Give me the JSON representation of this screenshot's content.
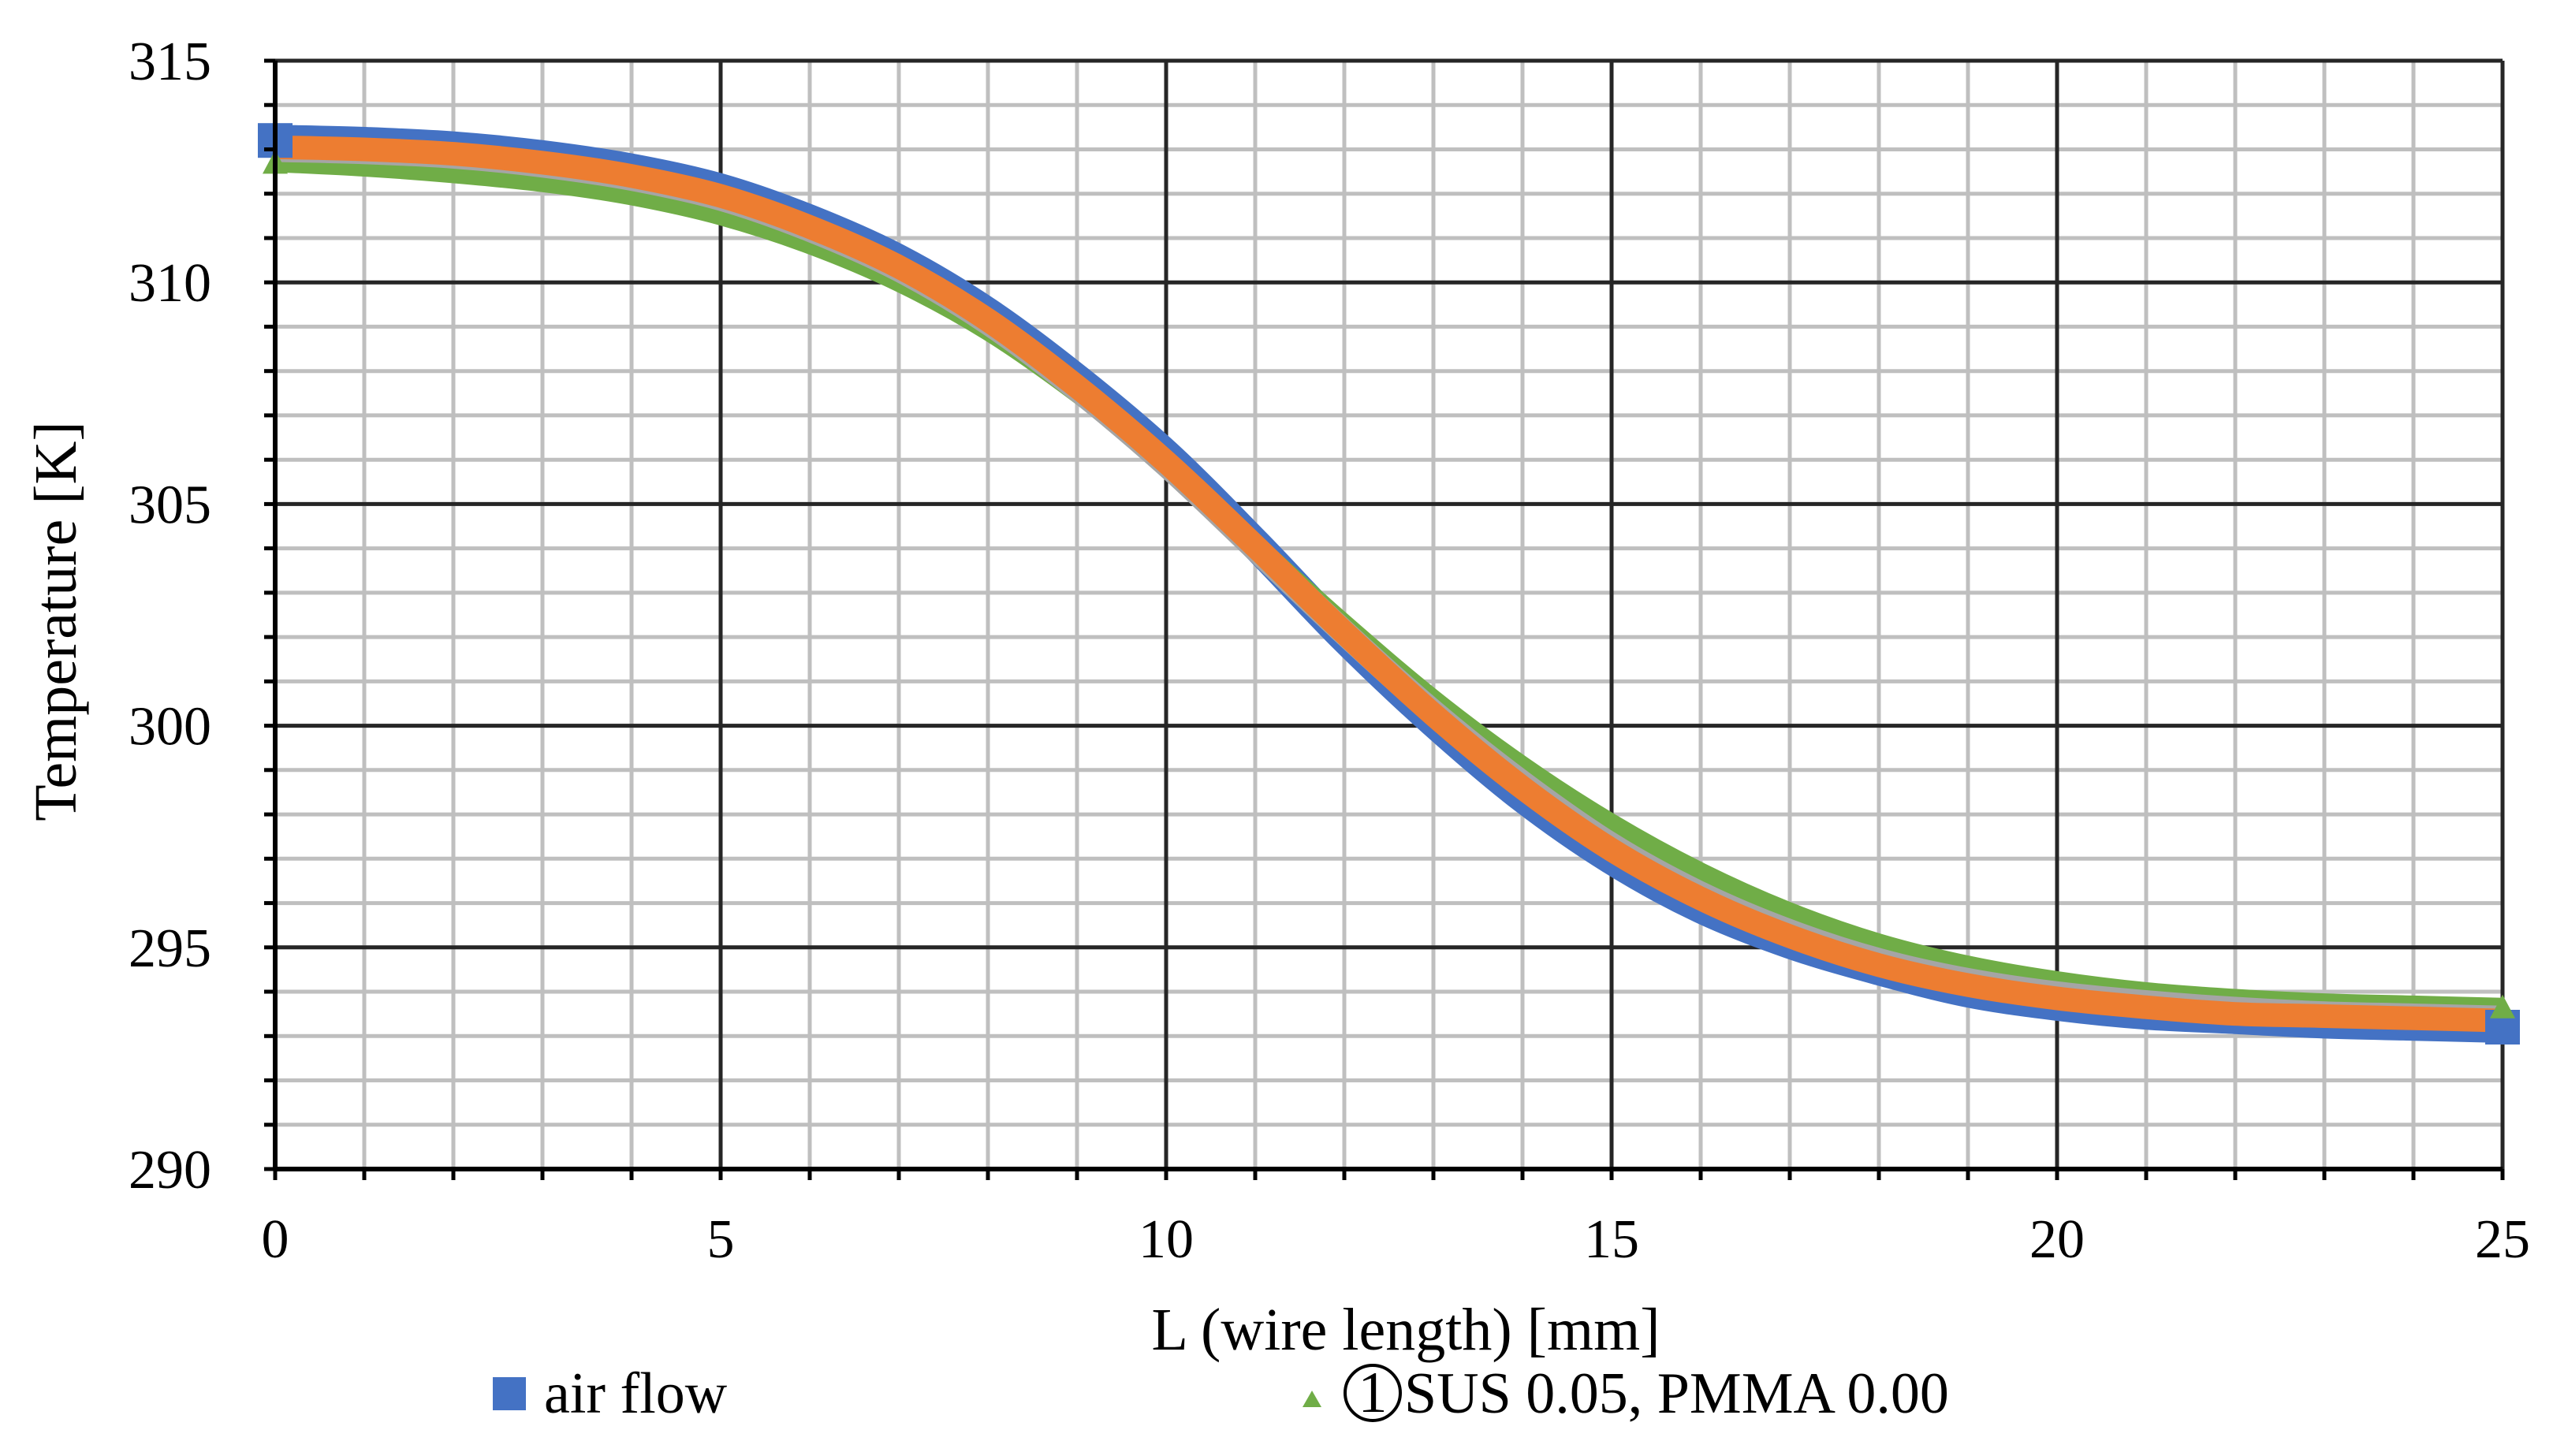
{
  "chart_data": {
    "type": "line",
    "xlabel": "L (wire length) [mm]",
    "ylabel": "Temperature [K]",
    "xlim": [
      0,
      25
    ],
    "ylim": [
      290,
      315
    ],
    "x_major_ticks": [
      0,
      5,
      10,
      15,
      20,
      25
    ],
    "y_major_ticks": [
      290,
      295,
      300,
      305,
      310,
      315
    ],
    "x_tick_labels": [
      "0",
      "5",
      "10",
      "15",
      "20",
      "25"
    ],
    "y_tick_labels": [
      "290",
      "295",
      "300",
      "305",
      "310",
      "315"
    ],
    "x_minor_step": 1,
    "y_minor_step": 1,
    "grid": true,
    "x": [
      0,
      1,
      2,
      3,
      4,
      5,
      6,
      7,
      8,
      9,
      10,
      11,
      12,
      13,
      14,
      15,
      16,
      17,
      18,
      19,
      20,
      21,
      22,
      23,
      24,
      25
    ],
    "series": [
      {
        "name": "air flow",
        "color": "#4472C4",
        "values": [
          313.2,
          313.15,
          313.05,
          312.85,
          312.55,
          312.1,
          311.4,
          310.5,
          309.3,
          307.8,
          306.1,
          304.1,
          302.0,
          300.1,
          298.4,
          297.0,
          295.9,
          295.1,
          294.5,
          294.0,
          293.7,
          293.5,
          293.4,
          293.3,
          293.25,
          293.2
        ]
      },
      {
        "name": "",
        "color": "#A5A5A5",
        "values": [
          313.0,
          312.95,
          312.85,
          312.65,
          312.35,
          311.9,
          311.2,
          310.3,
          309.1,
          307.6,
          305.9,
          304.0,
          302.1,
          300.3,
          298.7,
          297.3,
          296.2,
          295.35,
          294.7,
          294.25,
          293.95,
          293.75,
          293.6,
          293.5,
          293.45,
          293.4
        ]
      },
      {
        "name": "",
        "color": "#ED7D31",
        "values": [
          313.05,
          313.0,
          312.9,
          312.7,
          312.4,
          311.95,
          311.25,
          310.35,
          309.15,
          307.65,
          305.95,
          304.05,
          302.1,
          300.25,
          298.6,
          297.2,
          296.1,
          295.25,
          294.6,
          294.15,
          293.85,
          293.65,
          293.5,
          293.45,
          293.4,
          293.35
        ]
      },
      {
        "name": "①SUS 0.05, PMMA 0.00",
        "color": "#70AD47",
        "values": [
          312.7,
          312.6,
          312.45,
          312.25,
          311.95,
          311.5,
          310.85,
          310.0,
          308.9,
          307.5,
          305.9,
          304.1,
          302.3,
          300.6,
          299.1,
          297.8,
          296.7,
          295.8,
          295.1,
          294.6,
          294.25,
          294.0,
          293.85,
          293.75,
          293.7,
          293.65
        ]
      }
    ],
    "legend": {
      "position": "bottom",
      "entries": [
        {
          "marker": "square",
          "color": "#4472C4",
          "circled": "",
          "label": "air flow"
        },
        {
          "marker": "triangle",
          "color": "#70AD47",
          "circled": "1",
          "label": "SUS 0.05, PMMA 0.00"
        }
      ]
    }
  }
}
